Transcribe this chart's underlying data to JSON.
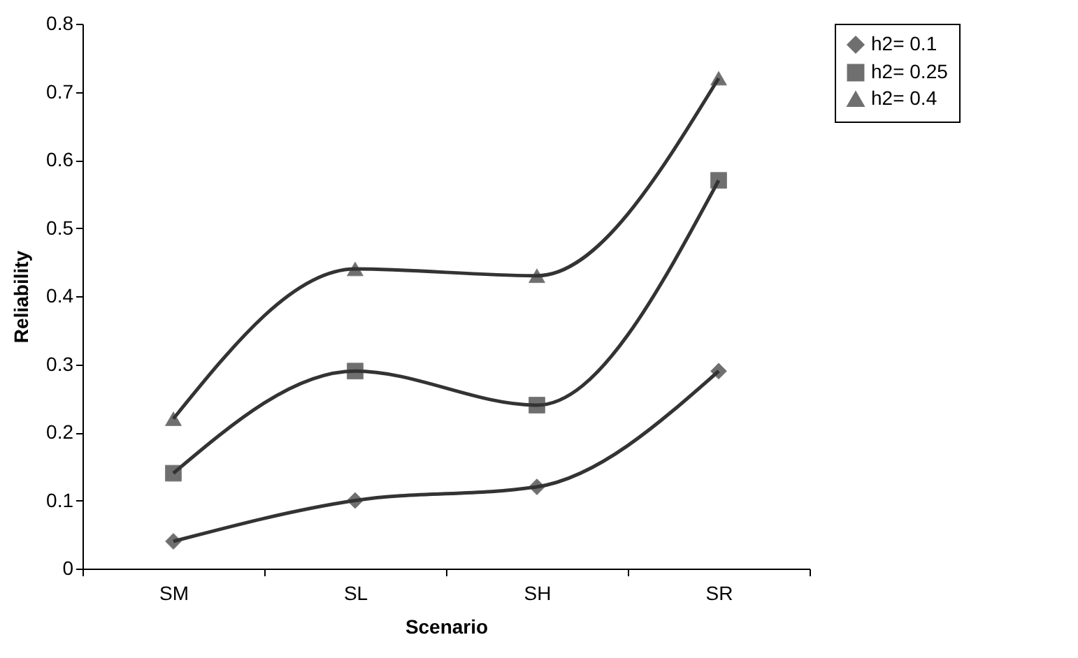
{
  "chart_data": {
    "type": "line",
    "xlabel": "Scenario",
    "ylabel": "Reliability",
    "categories": [
      "SM",
      "SL",
      "SH",
      "SR"
    ],
    "series": [
      {
        "name": "h2= 0.1",
        "color": "#333333",
        "marker": "diamond",
        "values": [
          0.04,
          0.1,
          0.12,
          0.29
        ]
      },
      {
        "name": "h2= 0.25",
        "color": "#333333",
        "marker": "square",
        "values": [
          0.14,
          0.29,
          0.24,
          0.57
        ]
      },
      {
        "name": "h2= 0.4",
        "color": "#333333",
        "marker": "triangle",
        "values": [
          0.22,
          0.44,
          0.43,
          0.72
        ]
      }
    ],
    "ylim": [
      0,
      0.8
    ],
    "yticks": [
      0,
      0.1,
      0.2,
      0.3,
      0.4,
      0.5,
      0.6,
      0.7,
      0.8
    ],
    "grid": false,
    "legend": "right",
    "line_style": "solid"
  }
}
